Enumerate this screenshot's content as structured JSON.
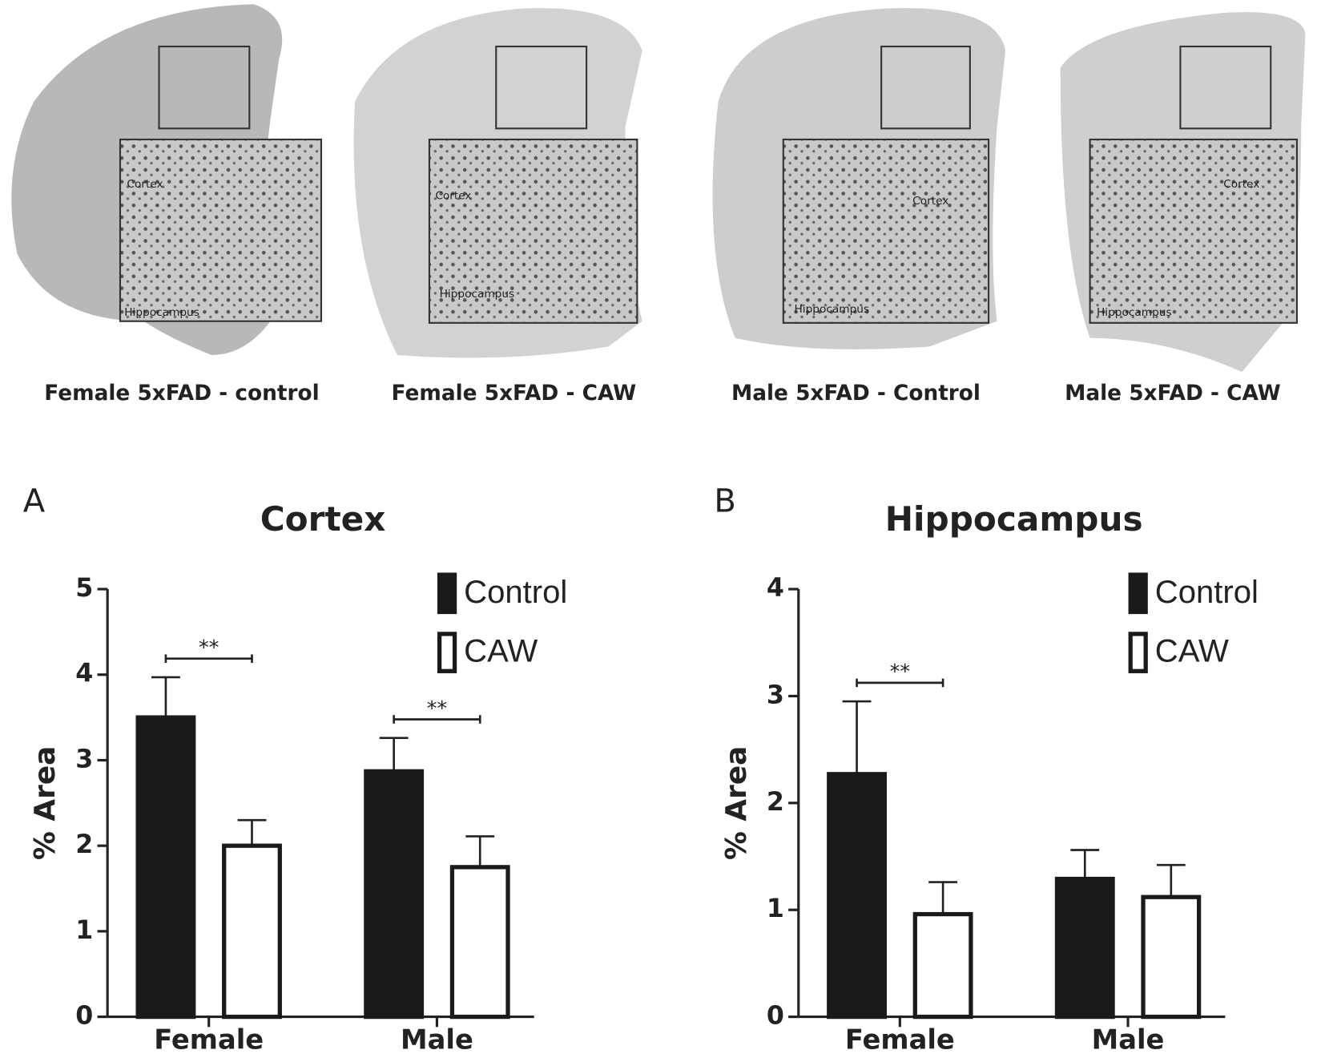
{
  "figure_images": [
    {
      "caption": "Female 5xFAD - control",
      "inset_labels": [
        "Cortex",
        "Hippocampus"
      ]
    },
    {
      "caption": "Female 5xFAD - CAW",
      "inset_labels": [
        "Cortex",
        "Hippocampus"
      ]
    },
    {
      "caption": "Male 5xFAD - Control",
      "inset_labels": [
        "Cortex",
        "Hippocampus"
      ]
    },
    {
      "caption": "Male 5xFAD - CAW",
      "inset_labels": [
        "Cortex",
        "Hippocampus"
      ]
    }
  ],
  "chart_data": [
    {
      "type": "bar",
      "panel": "A",
      "title": "Cortex",
      "y_label": "% Area",
      "categories": [
        "Female",
        "Male"
      ],
      "series": [
        {
          "name": "Control",
          "color": "#1a1a1a",
          "values": [
            3.5,
            2.87
          ],
          "errors": [
            0.47,
            0.39
          ]
        },
        {
          "name": "CAW",
          "color": "#ffffff",
          "values": [
            2.0,
            1.75
          ],
          "errors": [
            0.3,
            0.36
          ]
        }
      ],
      "significance": [
        "**",
        "**"
      ],
      "ylim": [
        0,
        5
      ],
      "yticks": [
        0,
        1,
        2,
        3,
        4,
        5
      ]
    },
    {
      "type": "bar",
      "panel": "B",
      "title": "Hippocampus",
      "y_label": "% Area",
      "categories": [
        "Female",
        "Male"
      ],
      "series": [
        {
          "name": "Control",
          "color": "#1a1a1a",
          "values": [
            2.27,
            1.29
          ],
          "errors": [
            0.68,
            0.27
          ]
        },
        {
          "name": "CAW",
          "color": "#ffffff",
          "values": [
            0.96,
            1.12
          ],
          "errors": [
            0.3,
            0.3
          ]
        }
      ],
      "significance": [
        "**",
        null
      ],
      "ylim": [
        0,
        4
      ],
      "yticks": [
        0,
        1,
        2,
        3,
        4
      ]
    }
  ]
}
